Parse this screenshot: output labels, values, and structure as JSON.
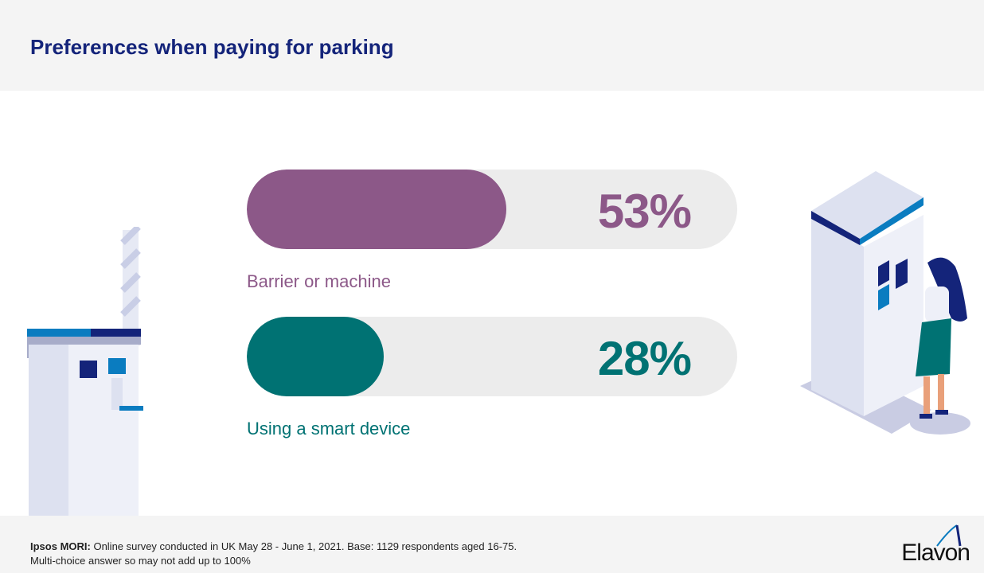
{
  "header": {
    "title": "Preferences when paying for parking"
  },
  "chart_data": {
    "type": "bar",
    "title": "Preferences when paying for parking",
    "categories": [
      "Barrier or machine",
      "Using a smart device"
    ],
    "values": [
      53,
      28
    ],
    "value_labels": [
      "53%",
      "28%"
    ],
    "ylim": [
      0,
      100
    ],
    "colors": [
      "#8c5888",
      "#007273"
    ]
  },
  "footer": {
    "source_label": "Ipsos MORI:",
    "source_text": " Online survey conducted in UK May 28 - June 1, 2021. Base: 1129 respondents aged 16-75.",
    "note": "Multi-choice answer so may not add up to 100%",
    "logo": "Elavon"
  }
}
